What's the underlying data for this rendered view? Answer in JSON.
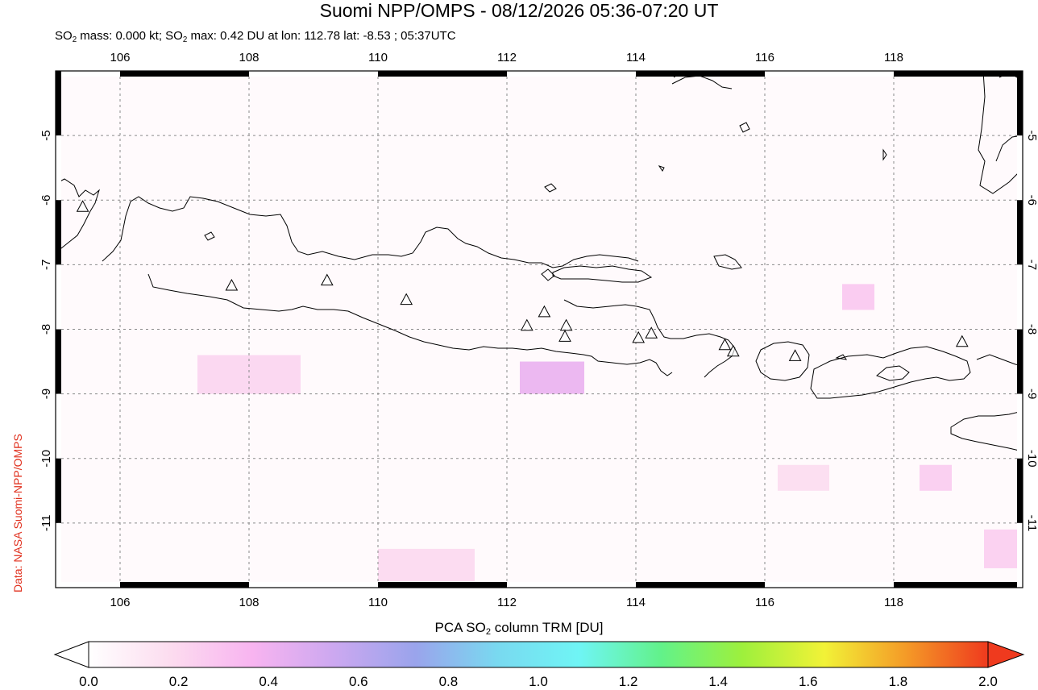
{
  "header": {
    "title": "Suomi NPP/OMPS - 08/12/2026 05:36-07:20 UT",
    "subtitle": {
      "mass_pre": "SO",
      "mass_sub": "2",
      "mass_value": " mass: 0.000 kt; ",
      "max_pre": "SO",
      "max_sub": "2",
      "max_value": " max: 0.42 DU at lon: 112.78 lat: -8.53 ; 05:37UTC"
    }
  },
  "credit": "Data: NASA Suomi-NPP/OMPS",
  "map": {
    "lon_range": [
      105,
      120
    ],
    "lat_range": [
      -12,
      -4
    ],
    "lon_ticks": [
      "106",
      "108",
      "110",
      "112",
      "114",
      "116",
      "118"
    ],
    "lat_ticks": [
      "-5",
      "-6",
      "-7",
      "-8",
      "-9",
      "-10",
      "-11"
    ],
    "grid": true,
    "volcano_icon": "triangle-volcano-icon",
    "volcanoes": [
      {
        "lon": 105.42,
        "lat": -6.1
      },
      {
        "lon": 107.73,
        "lat": -7.32
      },
      {
        "lon": 109.21,
        "lat": -7.24
      },
      {
        "lon": 110.44,
        "lat": -7.54
      },
      {
        "lon": 112.31,
        "lat": -7.94
      },
      {
        "lon": 112.58,
        "lat": -7.73
      },
      {
        "lon": 112.92,
        "lat": -7.94
      },
      {
        "lon": 112.9,
        "lat": -8.11
      },
      {
        "lon": 114.04,
        "lat": -8.13
      },
      {
        "lon": 114.24,
        "lat": -8.06
      },
      {
        "lon": 115.38,
        "lat": -8.24
      },
      {
        "lon": 115.51,
        "lat": -8.34
      },
      {
        "lon": 116.47,
        "lat": -8.41
      },
      {
        "lon": 119.06,
        "lat": -8.19
      }
    ],
    "so2_pixels": [
      {
        "lon": [
          112.2,
          113.2
        ],
        "lat": [
          -8.5,
          -9.0
        ],
        "du": 0.42
      },
      {
        "lon": [
          107.2,
          108.8
        ],
        "lat": [
          -8.4,
          -9.0
        ],
        "du": 0.22
      },
      {
        "lon": [
          110.0,
          111.5
        ],
        "lat": [
          -11.4,
          -11.9
        ],
        "du": 0.2
      },
      {
        "lon": [
          117.2,
          117.7
        ],
        "lat": [
          -7.3,
          -7.7
        ],
        "du": 0.28
      },
      {
        "lon": [
          119.4,
          120.0
        ],
        "lat": [
          -11.1,
          -11.7
        ],
        "du": 0.25
      },
      {
        "lon": [
          118.4,
          118.9
        ],
        "lat": [
          -10.1,
          -10.5
        ],
        "du": 0.26
      },
      {
        "lon": [
          116.2,
          117.0
        ],
        "lat": [
          -10.1,
          -10.5
        ],
        "du": 0.18
      }
    ]
  },
  "colorbar": {
    "title_pre": "PCA SO",
    "title_sub": "2",
    "title_post": " column TRM [DU]",
    "ticks": [
      "0.0",
      "0.2",
      "0.4",
      "0.6",
      "0.8",
      "1.0",
      "1.2",
      "1.4",
      "1.6",
      "1.8",
      "2.0"
    ],
    "min": 0.0,
    "max": 2.0,
    "colors": [
      "#ffffff",
      "#fcdcef",
      "#f8b4f0",
      "#cca8f0",
      "#9aa4ec",
      "#79d9f0",
      "#6ff5f5",
      "#62f28a",
      "#9ef03c",
      "#f2f237",
      "#f49a27",
      "#ef3a1e"
    ]
  }
}
